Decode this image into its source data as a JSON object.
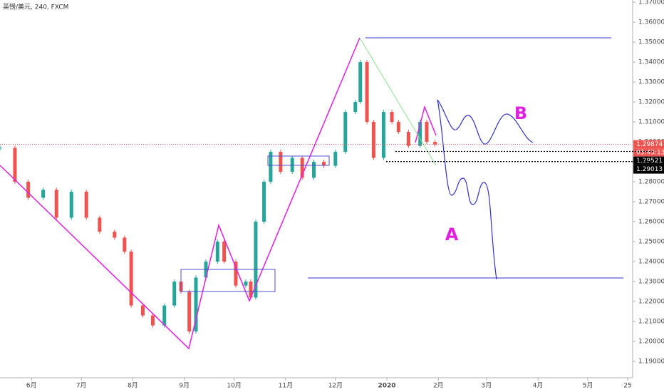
{
  "chart_data": {
    "type": "candlestick",
    "title": "英镑/美元, 240, FXCM",
    "x": [
      12,
      21,
      29,
      38,
      46,
      55,
      64,
      72,
      81,
      87,
      91,
      98,
      104,
      111,
      117,
      121,
      126,
      130,
      136,
      143,
      147,
      154,
      160,
      163,
      166,
      171,
      175,
      181,
      188,
      194,
      201,
      207,
      214,
      220,
      226,
      229,
      233,
      237,
      243,
      248,
      252,
      258,
      265,
      269,
      274
    ],
    "values": [
      1.297,
      1.28,
      1.272,
      1.276,
      1.262,
      1.275,
      1.262,
      1.255,
      1.252,
      1.245,
      1.218,
      1.213,
      1.208,
      1.218,
      1.23,
      1.225,
      1.205,
      1.232,
      1.24,
      1.25,
      1.24,
      1.228,
      1.23,
      1.222,
      1.26,
      1.28,
      1.295,
      1.285,
      1.292,
      1.282,
      1.29,
      1.288,
      1.295,
      1.315,
      1.32,
      1.34,
      1.31,
      1.292,
      1.315,
      1.31,
      1.305,
      1.298,
      1.31,
      1.3,
      1.29874
    ],
    "up_color": "#26a69a",
    "down_color": "#ef5350",
    "xlim": [
      12,
      393
    ],
    "xticks": [
      {
        "value": 31,
        "label": "6月"
      },
      {
        "value": 61,
        "label": "7月"
      },
      {
        "value": 92,
        "label": "8月"
      },
      {
        "value": 123,
        "label": "9月"
      },
      {
        "value": 153,
        "label": "10月"
      },
      {
        "value": 184,
        "label": "11月"
      },
      {
        "value": 214,
        "label": "12月"
      },
      {
        "value": 245,
        "label": "2020"
      },
      {
        "value": 276,
        "label": "2月"
      },
      {
        "value": 305,
        "label": "3月"
      },
      {
        "value": 336,
        "label": "4月"
      },
      {
        "value": 366,
        "label": "5月"
      },
      {
        "value": 390,
        "label": "25"
      }
    ],
    "ylim": [
      1.1818,
      1.3711
    ],
    "yticks": [
      {
        "value": 1.19,
        "label": "1.19000"
      },
      {
        "value": 1.2,
        "label": "1.20000"
      },
      {
        "value": 1.21,
        "label": "1.21000"
      },
      {
        "value": 1.22,
        "label": "1.22000"
      },
      {
        "value": 1.23,
        "label": "1.23000"
      },
      {
        "value": 1.24,
        "label": "1.24000"
      },
      {
        "value": 1.25,
        "label": "1.25000"
      },
      {
        "value": 1.26,
        "label": "1.26000"
      },
      {
        "value": 1.27,
        "label": "1.27000"
      },
      {
        "value": 1.28,
        "label": "1.28000"
      },
      {
        "value": 1.29,
        "label": "1.29000"
      },
      {
        "value": 1.3,
        "label": "1.30000"
      },
      {
        "value": 1.31,
        "label": "1.31000"
      },
      {
        "value": 1.32,
        "label": "1.32000"
      },
      {
        "value": 1.33,
        "label": "1.33000"
      },
      {
        "value": 1.34,
        "label": "1.34000"
      },
      {
        "value": 1.35,
        "label": "1.35000"
      },
      {
        "value": 1.36,
        "label": "1.36000"
      },
      {
        "value": 1.37,
        "label": "1.37000"
      }
    ],
    "current_price": 1.29874,
    "countdown": "03:43:13",
    "levels": [
      1.29521,
      1.29013
    ],
    "annotations": [
      "A",
      "B"
    ]
  }
}
